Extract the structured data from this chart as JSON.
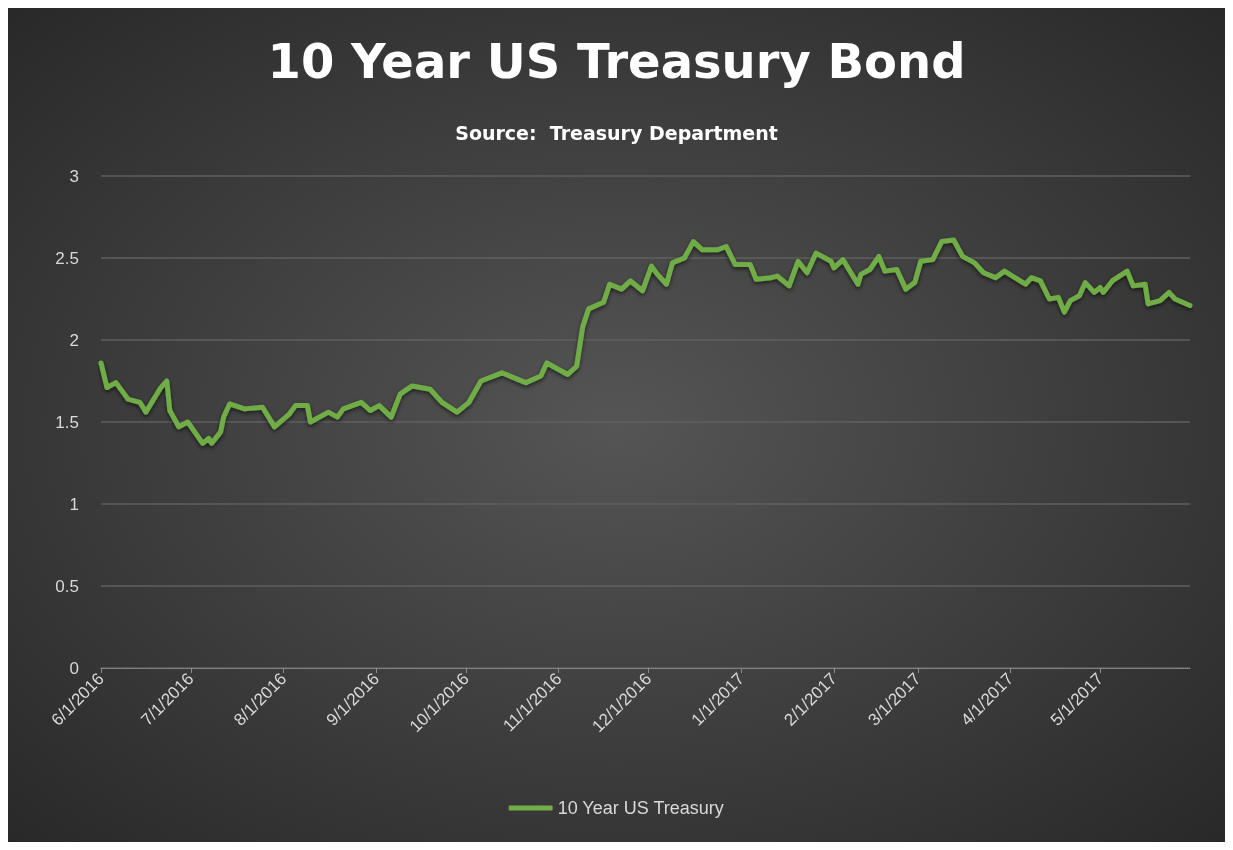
{
  "chart_data": {
    "type": "line",
    "title": "10 Year US Treasury Bond",
    "subtitle": "Source:  Treasury Department",
    "x": [
      "2016-06-01",
      "2016-06-03",
      "2016-06-06",
      "2016-06-10",
      "2016-06-14",
      "2016-06-16",
      "2016-06-21",
      "2016-06-23",
      "2016-06-24",
      "2016-06-27",
      "2016-06-30",
      "2016-07-05",
      "2016-07-07",
      "2016-07-08",
      "2016-07-11",
      "2016-07-12",
      "2016-07-14",
      "2016-07-19",
      "2016-07-25",
      "2016-07-29",
      "2016-08-03",
      "2016-08-05",
      "2016-08-09",
      "2016-08-10",
      "2016-08-16",
      "2016-08-19",
      "2016-08-21",
      "2016-08-27",
      "2016-08-30",
      "2016-09-02",
      "2016-09-06",
      "2016-09-09",
      "2016-09-13",
      "2016-09-19",
      "2016-09-23",
      "2016-09-28",
      "2016-10-02",
      "2016-10-06",
      "2016-10-13",
      "2016-10-21",
      "2016-10-26",
      "2016-10-28",
      "2016-11-04",
      "2016-11-07",
      "2016-11-09",
      "2016-11-11",
      "2016-11-16",
      "2016-11-18",
      "2016-11-22",
      "2016-11-25",
      "2016-11-29",
      "2016-12-02",
      "2016-12-04",
      "2016-12-07",
      "2016-12-09",
      "2016-12-13",
      "2016-12-16",
      "2016-12-19",
      "2016-12-24",
      "2016-12-27",
      "2016-12-30",
      "2017-01-04",
      "2017-01-06",
      "2017-01-11",
      "2017-01-13",
      "2017-01-17",
      "2017-01-20",
      "2017-01-23",
      "2017-01-26",
      "2017-01-31",
      "2017-02-01",
      "2017-02-04",
      "2017-02-09",
      "2017-02-10",
      "2017-02-13",
      "2017-02-16",
      "2017-02-18",
      "2017-02-22",
      "2017-02-25",
      "2017-02-28",
      "2017-03-02",
      "2017-03-06",
      "2017-03-09",
      "2017-03-13",
      "2017-03-16",
      "2017-03-20",
      "2017-03-23",
      "2017-03-27",
      "2017-03-30",
      "2017-04-06",
      "2017-04-08",
      "2017-04-11",
      "2017-04-14",
      "2017-04-17",
      "2017-04-19",
      "2017-04-21",
      "2017-04-24",
      "2017-04-26",
      "2017-04-29",
      "2017-05-01",
      "2017-05-02",
      "2017-05-05",
      "2017-05-10",
      "2017-05-12",
      "2017-05-16",
      "2017-05-17",
      "2017-05-21",
      "2017-05-24",
      "2017-05-26",
      "2017-05-31"
    ],
    "series": [
      {
        "name": "10 Year US Treasury",
        "color": "#70ad47",
        "values": [
          1.86,
          1.71,
          1.74,
          1.64,
          1.62,
          1.56,
          1.71,
          1.75,
          1.57,
          1.47,
          1.5,
          1.37,
          1.4,
          1.37,
          1.44,
          1.53,
          1.61,
          1.58,
          1.59,
          1.47,
          1.55,
          1.6,
          1.6,
          1.5,
          1.56,
          1.53,
          1.58,
          1.62,
          1.57,
          1.6,
          1.53,
          1.67,
          1.72,
          1.7,
          1.62,
          1.56,
          1.62,
          1.75,
          1.8,
          1.74,
          1.78,
          1.86,
          1.79,
          1.84,
          2.08,
          2.19,
          2.23,
          2.34,
          2.31,
          2.36,
          2.3,
          2.45,
          2.4,
          2.34,
          2.47,
          2.5,
          2.6,
          2.55,
          2.55,
          2.57,
          2.46,
          2.46,
          2.37,
          2.38,
          2.39,
          2.33,
          2.48,
          2.41,
          2.53,
          2.48,
          2.44,
          2.49,
          2.34,
          2.4,
          2.43,
          2.51,
          2.42,
          2.43,
          2.31,
          2.35,
          2.48,
          2.49,
          2.6,
          2.61,
          2.51,
          2.47,
          2.41,
          2.38,
          2.42,
          2.34,
          2.38,
          2.36,
          2.25,
          2.26,
          2.17,
          2.24,
          2.27,
          2.35,
          2.29,
          2.32,
          2.29,
          2.36,
          2.42,
          2.33,
          2.34,
          2.22,
          2.24,
          2.29,
          2.25,
          2.21
        ]
      }
    ],
    "xlim": [
      "2016-06-01",
      "2017-05-31"
    ],
    "xticks": [
      {
        "value": "2016-06-01",
        "label": "6/1/2016"
      },
      {
        "value": "2016-07-01",
        "label": "7/1/2016"
      },
      {
        "value": "2016-08-01",
        "label": "8/1/2016"
      },
      {
        "value": "2016-09-01",
        "label": "9/1/2016"
      },
      {
        "value": "2016-10-01",
        "label": "10/1/2016"
      },
      {
        "value": "2016-11-01",
        "label": "11/1/2016"
      },
      {
        "value": "2016-12-01",
        "label": "12/1/2016"
      },
      {
        "value": "2017-01-01",
        "label": "1/1/2017"
      },
      {
        "value": "2017-02-01",
        "label": "2/1/2017"
      },
      {
        "value": "2017-03-01",
        "label": "3/1/2017"
      },
      {
        "value": "2017-04-01",
        "label": "4/1/2017"
      },
      {
        "value": "2017-05-01",
        "label": "5/1/2017"
      }
    ],
    "ylim": [
      0,
      3
    ],
    "yticks": [
      0,
      0.5,
      1,
      1.5,
      2,
      2.5,
      3
    ],
    "grid": "y",
    "legend": "bottom",
    "marker": "none",
    "line_style": "solid"
  }
}
